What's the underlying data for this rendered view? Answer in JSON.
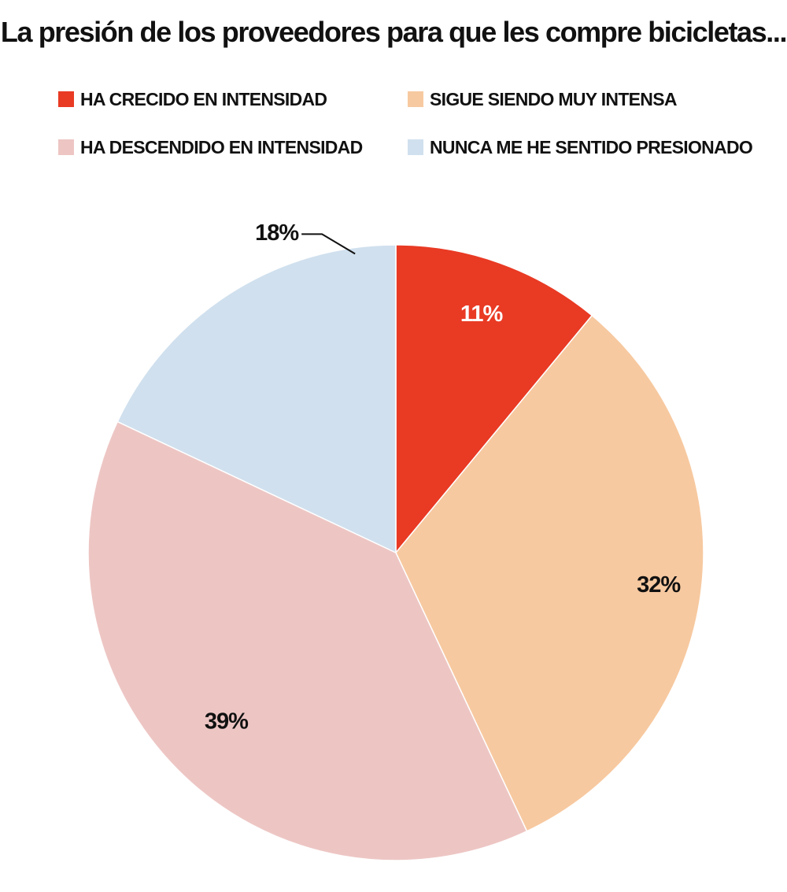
{
  "chart_data": {
    "type": "pie",
    "title": "La presión de los proveedores para que les compre bicicletas...",
    "categories": [
      "HA CRECIDO EN INTENSIDAD",
      "SIGUE SIENDO MUY INTENSA",
      "HA DESCENDIDO EN INTENSIDAD",
      "NUNCA ME HE SENTIDO PRESIONADO"
    ],
    "values": [
      11,
      32,
      39,
      18
    ],
    "labels": [
      "11%",
      "32%",
      "39%",
      "18%"
    ],
    "colors": [
      "#e93a24",
      "#f7c9a0",
      "#edc6c4",
      "#d0e0ee"
    ],
    "label_colors": [
      "#ffffff",
      "#111111",
      "#111111",
      "#111111"
    ],
    "legend_position": "top",
    "start": "12 o'clock",
    "direction": "clockwise"
  }
}
